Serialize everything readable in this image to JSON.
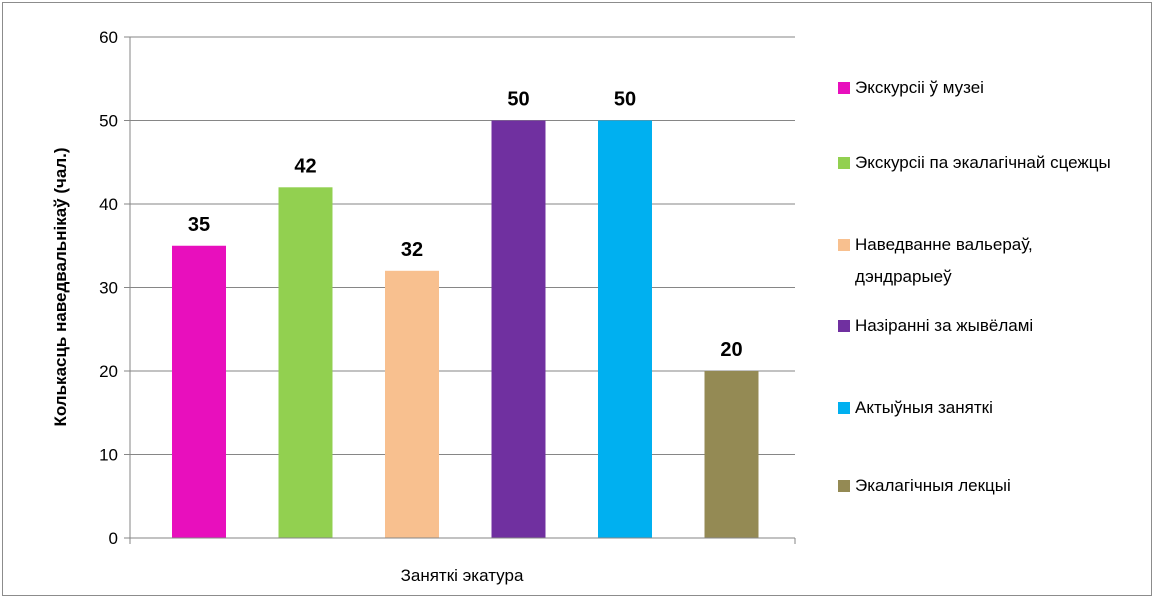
{
  "chart_data": {
    "type": "bar",
    "title": "",
    "xlabel": "Заняткі экатура",
    "ylabel": "Колькасць наведвальнікаў (чал.)",
    "ylim": [
      0,
      60
    ],
    "yticks": [
      0,
      10,
      20,
      30,
      40,
      50,
      60
    ],
    "grid": true,
    "legend_position": "right",
    "categories": [
      "Экскурсіі ў музеі",
      "Экскурсіі па экалагічнай сцежцы",
      "Наведванне вальераў, дэндрарыеў",
      "Назіранні за жывёламі",
      "Актыўныя заняткі",
      "Экалагічныя лекцыі"
    ],
    "values": [
      35,
      42,
      32,
      50,
      50,
      20
    ],
    "value_labels": [
      "35",
      "42",
      "32",
      "50",
      "50",
      "20"
    ],
    "colors": [
      "#e80fbd",
      "#92d050",
      "#f8c08f",
      "#7030a0",
      "#00b0f0",
      "#948a54"
    ]
  }
}
